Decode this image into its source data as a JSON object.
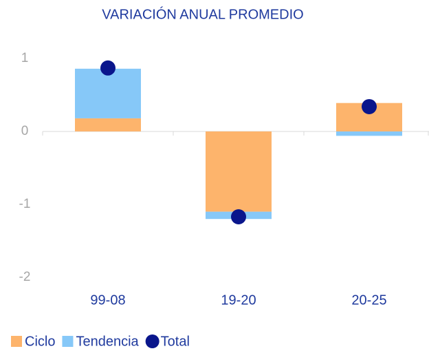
{
  "chart_data": {
    "type": "bar",
    "stacked": true,
    "title": "VARIACIÓN ANUAL PROMEDIO",
    "categories": [
      "99-08",
      "19-20",
      "20-25"
    ],
    "series": [
      {
        "name": "Ciclo",
        "color": "#fdb46c",
        "values": [
          0.18,
          -1.1,
          0.39
        ]
      },
      {
        "name": "Tendencia",
        "color": "#86c8f8",
        "values": [
          0.68,
          -0.1,
          -0.06
        ]
      },
      {
        "name": "Total",
        "type": "scatter",
        "color": "#0a168c",
        "values": [
          0.87,
          -1.17,
          0.34
        ]
      }
    ],
    "ylim": [
      -2,
      1
    ],
    "yticks": [
      -2,
      -1,
      0,
      1
    ],
    "grid": false,
    "legend": "bottom"
  }
}
